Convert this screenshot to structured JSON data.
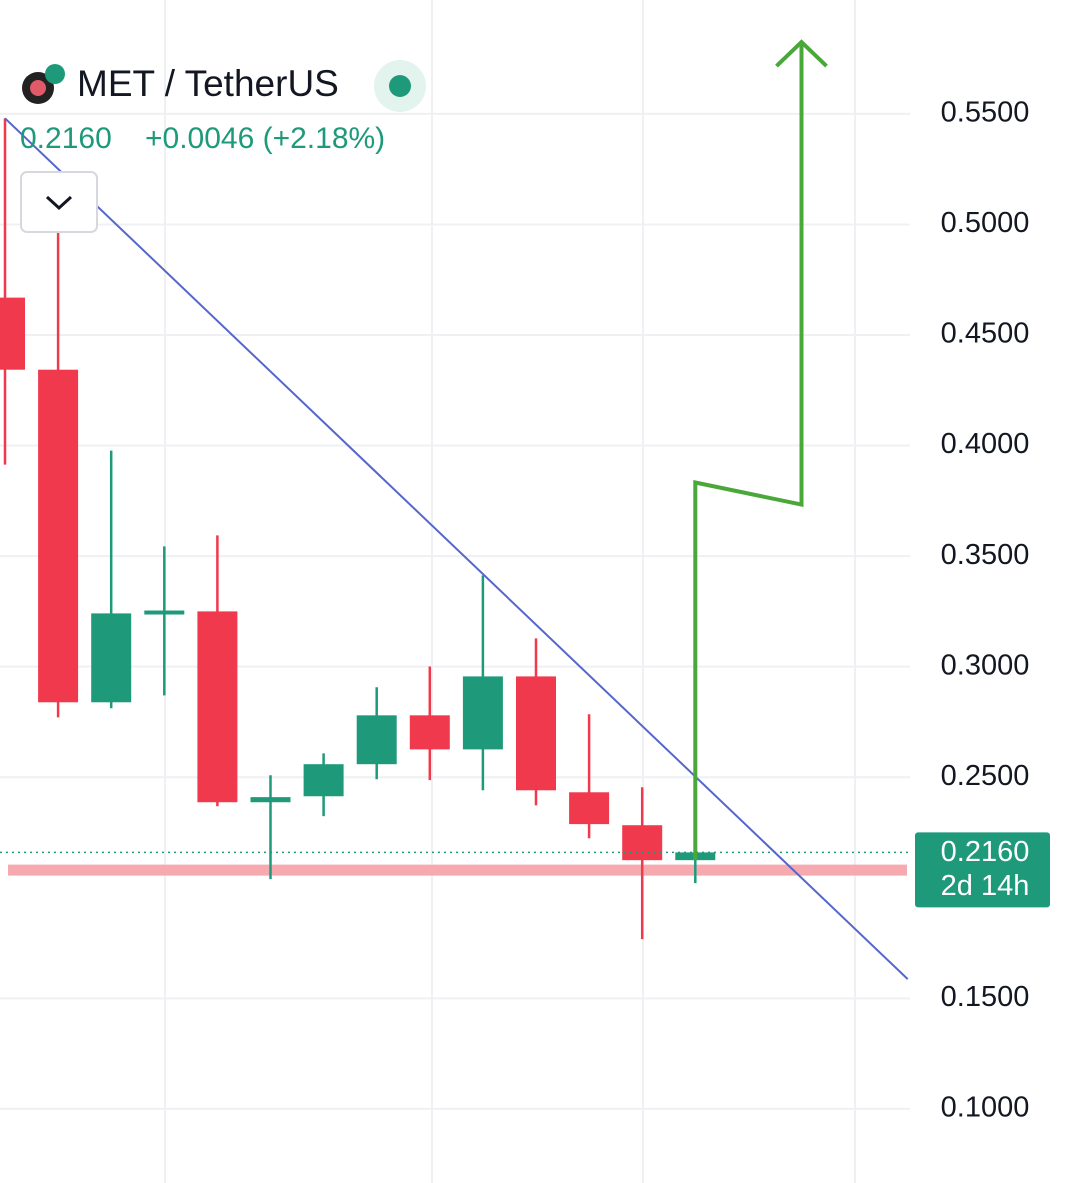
{
  "chart_data": {
    "type": "candlestick",
    "title": "MET / TetherUS",
    "last_price": {
      "value": 0.216,
      "label": "0.2160"
    },
    "price_change": "+0.0046 (+2.18%)",
    "countdown": "2d 14h",
    "categories": [
      null,
      null,
      null,
      null,
      null,
      null,
      null,
      null,
      null,
      null,
      null,
      null,
      null,
      null
    ],
    "open": [
      0.4669,
      0.4343,
      0.2839,
      0.3241,
      0.325,
      0.2387,
      0.2414,
      0.2559,
      0.278,
      0.2626,
      0.2956,
      0.2432,
      0.2283,
      0.2125
    ],
    "high": [
      0.548,
      0.4967,
      0.3977,
      0.3544,
      0.3594,
      0.2509,
      0.2608,
      0.2907,
      0.3001,
      0.3413,
      0.3128,
      0.2785,
      0.2455,
      0.216
    ],
    "low": [
      0.3914,
      0.2771,
      0.2812,
      0.287,
      0.2369,
      0.2039,
      0.2324,
      0.2491,
      0.2487,
      0.2441,
      0.2373,
      0.2224,
      0.1768,
      0.2021
    ],
    "close": [
      0.4343,
      0.2839,
      0.3241,
      0.3254,
      0.2387,
      0.241,
      0.2559,
      0.278,
      0.2626,
      0.2956,
      0.2441,
      0.2288,
      0.2125,
      0.216
    ],
    "up_color": "#1e9a7b",
    "down_color": "#f0394c",
    "trendline": {
      "x": [
        0,
        17
      ],
      "y": [
        0.548,
        0.1587
      ],
      "color": "#5566cc"
    },
    "projection": {
      "x": [
        13,
        13,
        15,
        15
      ],
      "y": [
        0.2125,
        0.3833,
        0.3733,
        0.5825
      ],
      "color": "#4aa83a"
    },
    "support": {
      "value": 0.208,
      "color": "#f6a9ae"
    },
    "ylim": [
      0.0665,
      0.6015
    ],
    "yticks": [
      {
        "value": 0.1,
        "label": "0.1000"
      },
      {
        "value": 0.15,
        "label": "0.1500"
      },
      {
        "value": 0.25,
        "label": "0.2500"
      },
      {
        "value": 0.3,
        "label": "0.3000"
      },
      {
        "value": 0.35,
        "label": "0.3500"
      },
      {
        "value": 0.4,
        "label": "0.4000"
      },
      {
        "value": 0.45,
        "label": "0.4500"
      },
      {
        "value": 0.5,
        "label": "0.5000"
      },
      {
        "value": 0.55,
        "label": "0.5500"
      }
    ],
    "grid": true
  }
}
